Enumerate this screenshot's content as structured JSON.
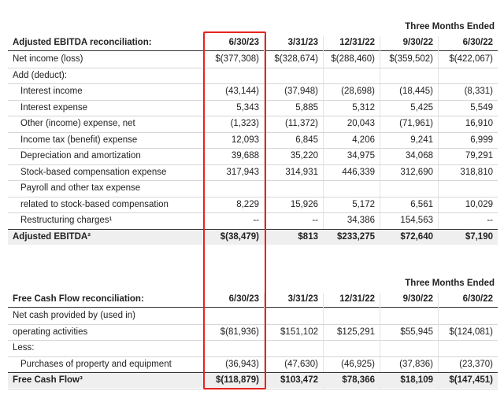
{
  "tables": [
    {
      "period_heading": "Three Months Ended",
      "header": [
        "Adjusted EBITDA reconciliation:",
        "6/30/23",
        "3/31/23",
        "12/31/22",
        "9/30/22",
        "6/30/22"
      ],
      "rows": [
        {
          "label": "Net income (loss)",
          "values": [
            "$(377,308)",
            "$(328,674)",
            "$(288,460)",
            "$(359,502)",
            "$(422,067)"
          ]
        },
        {
          "label": "Add (deduct):"
        },
        {
          "label": "Interest income",
          "values": [
            "(43,144)",
            "(37,948)",
            "(28,698)",
            "(18,445)",
            "(8,331)"
          ]
        },
        {
          "label": "Interest expense",
          "values": [
            "5,343",
            "5,885",
            "5,312",
            "5,425",
            "5,549"
          ]
        },
        {
          "label": "Other (income) expense, net",
          "values": [
            "(1,323)",
            "(11,372)",
            "20,043",
            "(71,961)",
            "16,910"
          ]
        },
        {
          "label": "Income tax (benefit) expense",
          "values": [
            "12,093",
            "6,845",
            "4,206",
            "9,241",
            "6,999"
          ]
        },
        {
          "label": "Depreciation and amortization",
          "values": [
            "39,688",
            "35,220",
            "34,975",
            "34,068",
            "79,291"
          ]
        },
        {
          "label": "Stock-based compensation expense",
          "values": [
            "317,943",
            "314,931",
            "446,339",
            "312,690",
            "318,810"
          ]
        },
        {
          "label": "Payroll and other tax expense"
        },
        {
          "label": "related to stock-based compensation",
          "values": [
            "8,229",
            "15,926",
            "5,172",
            "6,561",
            "10,029"
          ]
        },
        {
          "label": "Restructuring charges¹",
          "values": [
            "--",
            "--",
            "34,386",
            "154,563",
            "--"
          ]
        },
        {
          "label": "Adjusted EBITDA²",
          "values": [
            "$(38,479)",
            "$813",
            "$233,275",
            "$72,640",
            "$7,190"
          ]
        }
      ]
    },
    {
      "period_heading": "Three Months Ended",
      "header": [
        "Free Cash Flow reconciliation:",
        "6/30/23",
        "3/31/23",
        "12/31/22",
        "9/30/22",
        "6/30/22"
      ],
      "rows": [
        {
          "label": "Net cash provided by (used in)"
        },
        {
          "label": "operating activities",
          "values": [
            "$(81,936)",
            "$151,102",
            "$125,291",
            "$55,945",
            "$(124,081)"
          ]
        },
        {
          "label": "Less:"
        },
        {
          "label": "Purchases of property and equipment",
          "values": [
            "(36,943)",
            "(47,630)",
            "(46,925)",
            "(37,836)",
            "(23,370)"
          ]
        },
        {
          "label": "Free Cash Flow³",
          "values": [
            "$(118,879)",
            "$103,472",
            "$78,366",
            "$18,109",
            "$(147,451)"
          ]
        }
      ]
    }
  ]
}
